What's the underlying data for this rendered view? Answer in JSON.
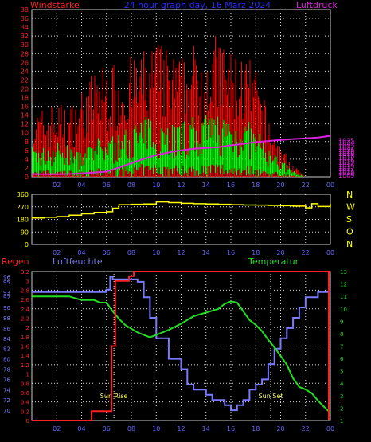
{
  "header": {
    "left_label": "Windstärke",
    "title": "24 hour graph day, 16 März 2024",
    "right_label": "Luftdruck"
  },
  "colors": {
    "gust": "#ff0000",
    "wind": "#00ff00",
    "pressure": "#dd22dd",
    "direction": "#ffff00",
    "rain": "#ff2020",
    "humidity": "#7a7aff",
    "temperature": "#22dd22",
    "grid": "#dddddd",
    "axis": "#cccccc"
  },
  "x_ticks": [
    "02",
    "04",
    "06",
    "08",
    "10",
    "12",
    "14",
    "16",
    "18",
    "20",
    "22",
    "00"
  ],
  "chart_data": [
    {
      "type": "line",
      "title": "24 hour graph day, 16 März 2024",
      "left_axis": {
        "label": "Windstärke",
        "range": [
          0,
          38
        ],
        "ticks": [
          0,
          2,
          4,
          6,
          8,
          10,
          12,
          14,
          16,
          18,
          20,
          22,
          24,
          26,
          28,
          30,
          32,
          34,
          36,
          38
        ]
      },
      "right_axis": {
        "label": "Luftdruck",
        "range": [
          1008.2,
          1085.8
        ],
        "ticks": [
          1009,
          1010,
          1011,
          1012,
          1013,
          1014,
          1015,
          1016,
          1017,
          1018,
          1019,
          1020,
          1021,
          1022,
          1023,
          1024,
          1025
        ]
      },
      "series": [
        {
          "name": "Windstärke",
          "axis": "left",
          "color_key": "wind",
          "x": [
            0,
            1,
            2,
            3,
            4,
            5,
            6,
            7,
            8,
            9,
            10,
            11,
            12,
            13,
            14,
            15,
            16,
            17,
            18,
            19,
            20,
            21,
            22,
            23,
            24
          ],
          "values": [
            5,
            5,
            6,
            5,
            4,
            6,
            7,
            7,
            9,
            10,
            10,
            10,
            9,
            10,
            10,
            11,
            10,
            10,
            8,
            5,
            3,
            1,
            0,
            0,
            0
          ]
        },
        {
          "name": "Böen",
          "axis": "left",
          "color_key": "gust",
          "x": [
            0,
            1,
            2,
            3,
            4,
            5,
            6,
            7,
            8,
            9,
            10,
            11,
            12,
            13,
            14,
            15,
            16,
            17,
            18,
            19,
            20,
            21,
            22,
            23,
            24
          ],
          "values": [
            10,
            11,
            12,
            11,
            14,
            17,
            18,
            18,
            19,
            20,
            22,
            20,
            19,
            21,
            21,
            23,
            20,
            20,
            17,
            10,
            5,
            2,
            0,
            0,
            0
          ]
        },
        {
          "name": "Luftdruck",
          "axis": "right",
          "color_key": "pressure",
          "x": [
            0,
            1,
            2,
            3,
            4,
            5,
            6,
            7,
            8,
            9,
            10,
            11,
            12,
            13,
            14,
            15,
            16,
            17,
            18,
            19,
            20,
            21,
            22,
            23,
            24
          ],
          "values": [
            1009.5,
            1009.4,
            1009.4,
            1009.5,
            1009.8,
            1010.2,
            1010.6,
            1012.5,
            1014.5,
            1016.5,
            1018.3,
            1019.5,
            1020.5,
            1021.2,
            1021.6,
            1022.0,
            1022.8,
            1023.5,
            1024.3,
            1024.8,
            1025.3,
            1025.7,
            1026.0,
            1026.4,
            1027.2
          ]
        }
      ]
    },
    {
      "type": "line",
      "series": [
        {
          "name": "Windrichtung",
          "color_key": "direction",
          "x": [
            0,
            1,
            2,
            3,
            4,
            5,
            6,
            6.5,
            7,
            8,
            9,
            10,
            11,
            12,
            13,
            14,
            15,
            16,
            17,
            18,
            19,
            20,
            21,
            22,
            22.5,
            23,
            24
          ],
          "values": [
            190,
            195,
            200,
            210,
            220,
            230,
            235,
            260,
            285,
            288,
            290,
            305,
            300,
            295,
            292,
            290,
            288,
            285,
            283,
            282,
            280,
            278,
            275,
            262,
            292,
            272,
            292
          ]
        }
      ],
      "left_axis": {
        "range": [
          0,
          360
        ],
        "ticks": [
          0,
          90,
          180,
          270,
          360
        ]
      },
      "right_labels": [
        "N",
        "W",
        "S",
        "O",
        "N"
      ]
    },
    {
      "type": "line",
      "labels": {
        "rain": "Regen",
        "humidity": "Luftfeuchte",
        "temperature": "Temperatur"
      },
      "annotations": [
        {
          "text": "Sun Rise",
          "x": 6.6
        },
        {
          "text": "Sun Set",
          "x": 19.2
        }
      ],
      "rain_axis": {
        "range": [
          0,
          3.2
        ],
        "ticks": [
          0,
          0.2,
          0.4,
          0.6,
          0.8,
          1,
          1.2,
          1.4,
          1.6,
          1.8,
          2,
          2.2,
          2.4,
          2.6,
          2.8,
          3,
          3.2
        ]
      },
      "humidity_axis": {
        "range": [
          68,
          97
        ],
        "ticks": [
          70,
          72,
          74,
          76,
          78,
          80,
          82,
          84,
          86,
          88,
          90,
          92,
          93,
          95,
          96
        ]
      },
      "temperature_axis": {
        "range": [
          1,
          13
        ],
        "ticks": [
          1,
          2,
          3,
          4,
          5,
          6,
          7,
          8,
          9,
          10,
          11,
          12,
          13
        ]
      },
      "series": [
        {
          "name": "Regen",
          "axis": "rain",
          "color_key": "rain",
          "x": [
            0,
            4,
            4.8,
            5.2,
            5.6,
            6.1,
            6.4,
            6.7,
            7.2,
            7.8,
            8.2,
            24
          ],
          "values": [
            0,
            0,
            0.2,
            0.2,
            0.2,
            0.2,
            1.6,
            3.0,
            3.0,
            3.1,
            3.2,
            3.2
          ]
        },
        {
          "name": "Luftfeuchte",
          "axis": "humidity",
          "color_key": "humidity",
          "x": [
            0,
            0.5,
            1,
            2,
            3,
            4,
            5,
            6,
            6.3,
            6.5,
            7,
            8,
            8.5,
            9,
            9.5,
            10,
            11,
            12,
            12.5,
            13,
            14,
            14.5,
            15,
            15.5,
            16,
            16.5,
            17,
            17.5,
            18,
            18.5,
            19,
            19.5,
            20,
            20.5,
            21,
            21.5,
            22,
            22.5,
            23,
            24
          ],
          "values": [
            93,
            93,
            93,
            93,
            93,
            93,
            93,
            93.5,
            96,
            95.5,
            95.5,
            95.5,
            95,
            92,
            88,
            84,
            80,
            78,
            75,
            74,
            73,
            72,
            72,
            71,
            70,
            71,
            72,
            74,
            75,
            76,
            79,
            82,
            84,
            86,
            88,
            90,
            92,
            92,
            93,
            93
          ]
        },
        {
          "name": "Temperatur",
          "axis": "temperature",
          "color_key": "temperature",
          "x": [
            0,
            1,
            2,
            3,
            4,
            5,
            5.5,
            6,
            6.5,
            7,
            7.5,
            8,
            8.5,
            9,
            9.5,
            10,
            11,
            12,
            13,
            14,
            15,
            15.5,
            16,
            16.5,
            17,
            17.5,
            18,
            18.5,
            19,
            19.5,
            20,
            20.5,
            21,
            21.5,
            22,
            22.5,
            23,
            23.5,
            24
          ],
          "values": [
            11,
            11,
            11,
            11,
            10.7,
            10.7,
            10.5,
            10.5,
            9.8,
            9.2,
            8.7,
            8.4,
            8.1,
            7.9,
            7.7,
            7.9,
            8.3,
            8.8,
            9.4,
            9.7,
            10,
            10.4,
            10.6,
            10.5,
            9.8,
            9.1,
            8.7,
            8.2,
            7.5,
            6.9,
            6.2,
            5.5,
            4.4,
            3.7,
            3.5,
            3.2,
            2.6,
            2.1,
            1.6
          ]
        }
      ]
    }
  ]
}
